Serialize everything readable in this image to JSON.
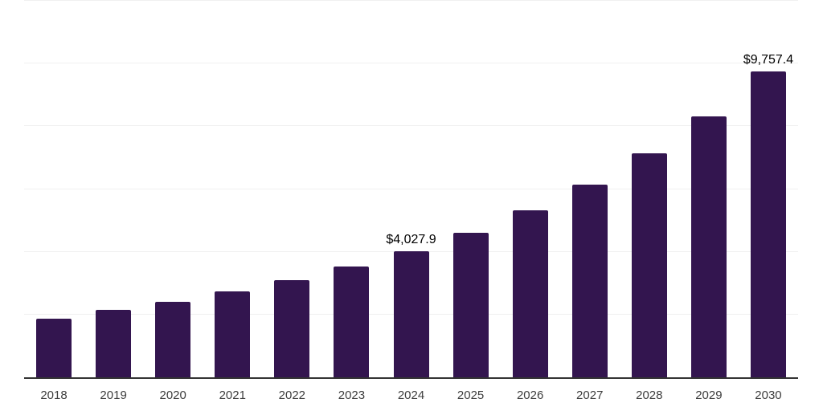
{
  "chart_data": {
    "type": "bar",
    "title": "",
    "xlabel": "",
    "ylabel": "",
    "categories": [
      "2018",
      "2019",
      "2020",
      "2021",
      "2022",
      "2023",
      "2024",
      "2025",
      "2026",
      "2027",
      "2028",
      "2029",
      "2030"
    ],
    "values": [
      1860,
      2140,
      2400,
      2730,
      3090,
      3530,
      4027.9,
      4600,
      5320,
      6140,
      7130,
      8310,
      9757.4
    ],
    "data_labels": [
      {
        "category": "2024",
        "text": "$4,027.9"
      },
      {
        "category": "2030",
        "text": "$9,757.4"
      }
    ],
    "ylim": [
      0,
      12000
    ],
    "grid_step": 2000,
    "grid": "horizontal",
    "legend": "none",
    "colors": {
      "bar": "#33154f",
      "axis": "#333333",
      "grid": "#f0f0f0",
      "data_label": "#000000",
      "tick_label": "#3d3d3d",
      "background": "#ffffff"
    }
  }
}
